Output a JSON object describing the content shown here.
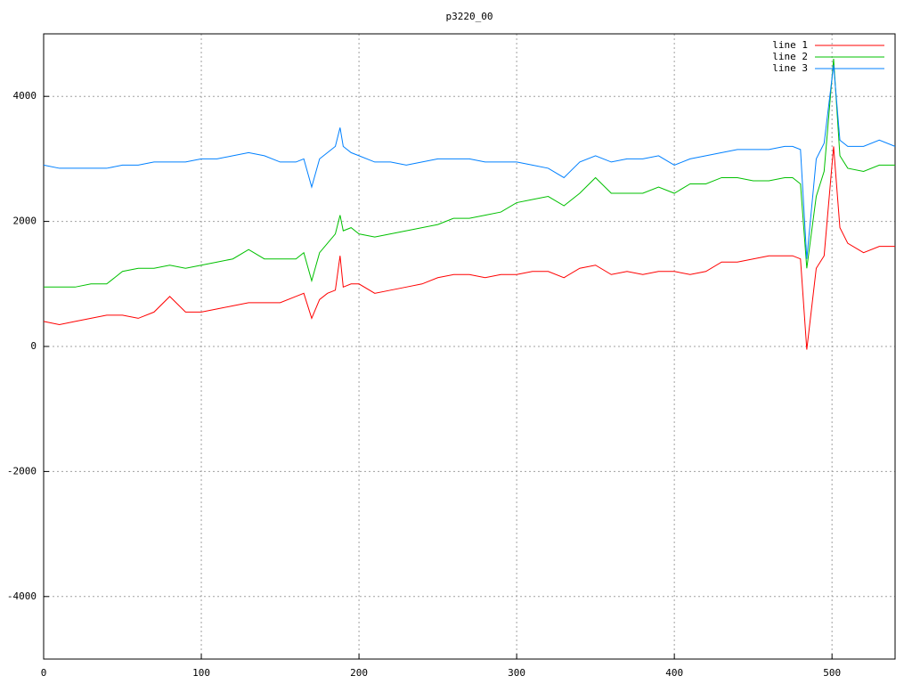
{
  "chart_data": {
    "type": "line",
    "title": "p3220_00",
    "x": [
      0,
      10,
      20,
      30,
      40,
      50,
      60,
      70,
      80,
      90,
      100,
      110,
      120,
      130,
      140,
      150,
      160,
      165,
      170,
      175,
      180,
      185,
      188,
      190,
      195,
      200,
      210,
      220,
      230,
      240,
      250,
      260,
      270,
      280,
      290,
      300,
      310,
      320,
      330,
      340,
      350,
      360,
      370,
      380,
      390,
      400,
      410,
      420,
      430,
      440,
      450,
      460,
      470,
      475,
      480,
      484,
      490,
      495,
      501,
      505,
      510,
      520,
      530,
      540
    ],
    "series": [
      {
        "name": "line 1",
        "color": "#ff0000",
        "values": [
          400,
          350,
          400,
          450,
          500,
          500,
          450,
          550,
          800,
          550,
          550,
          600,
          650,
          700,
          700,
          700,
          800,
          850,
          450,
          750,
          850,
          900,
          1450,
          950,
          1000,
          1000,
          850,
          900,
          950,
          1000,
          1100,
          1150,
          1150,
          1100,
          1150,
          1150,
          1200,
          1200,
          1100,
          1250,
          1300,
          1150,
          1200,
          1150,
          1200,
          1200,
          1150,
          1200,
          1350,
          1350,
          1400,
          1450,
          1450,
          1450,
          1400,
          -50,
          1250,
          1450,
          3200,
          1900,
          1650,
          1500,
          1600,
          1600
        ]
      },
      {
        "name": "line 2",
        "color": "#00c000",
        "values": [
          950,
          950,
          950,
          1000,
          1000,
          1200,
          1250,
          1250,
          1300,
          1250,
          1300,
          1350,
          1400,
          1550,
          1400,
          1400,
          1400,
          1500,
          1050,
          1500,
          1650,
          1800,
          2100,
          1850,
          1900,
          1800,
          1750,
          1800,
          1850,
          1900,
          1950,
          2050,
          2050,
          2100,
          2150,
          2300,
          2350,
          2400,
          2250,
          2450,
          2700,
          2450,
          2450,
          2450,
          2550,
          2450,
          2600,
          2600,
          2700,
          2700,
          2650,
          2650,
          2700,
          2700,
          2600,
          1250,
          2400,
          2800,
          4600,
          3050,
          2850,
          2800,
          2900,
          2900
        ]
      },
      {
        "name": "line 3",
        "color": "#0080ff",
        "values": [
          2900,
          2850,
          2850,
          2850,
          2850,
          2900,
          2900,
          2950,
          2950,
          2950,
          3000,
          3000,
          3050,
          3100,
          3050,
          2950,
          2950,
          3000,
          2550,
          3000,
          3100,
          3200,
          3500,
          3200,
          3100,
          3050,
          2950,
          2950,
          2900,
          2950,
          3000,
          3000,
          3000,
          2950,
          2950,
          2950,
          2900,
          2850,
          2700,
          2950,
          3050,
          2950,
          3000,
          3000,
          3050,
          2900,
          3000,
          3050,
          3100,
          3150,
          3150,
          3150,
          3200,
          3200,
          3150,
          1400,
          3000,
          3250,
          4500,
          3300,
          3200,
          3200,
          3300,
          3200
        ]
      }
    ],
    "xlim": [
      0,
      540
    ],
    "xticks": [
      0,
      100,
      200,
      300,
      400,
      500
    ],
    "ylim": [
      -5000,
      5000
    ],
    "yticks": [
      -4000,
      -2000,
      0,
      2000,
      4000
    ],
    "grid": true,
    "legend": "top-right"
  }
}
